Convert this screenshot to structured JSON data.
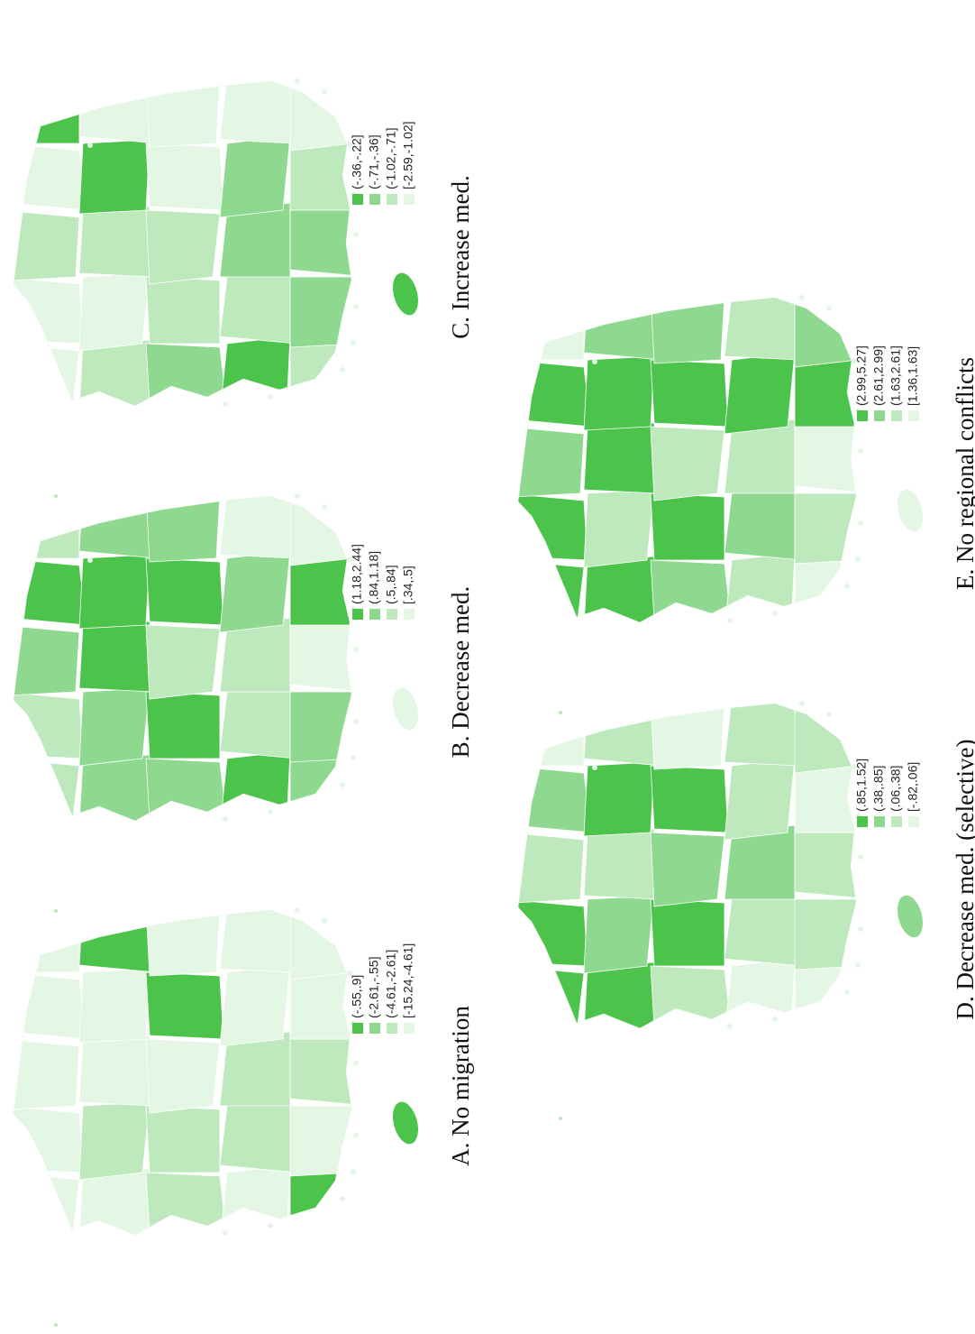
{
  "legend_colors": [
    "#4cc44c",
    "#8fd88f",
    "#bde9bd",
    "#e4f6e4"
  ],
  "panels": [
    {
      "caption": "A. No migration",
      "legend": [
        "(-.55,.9]",
        "(-2.61,-.55]",
        "(-4.61,-2.61]",
        "[-15.24,-4.61]"
      ]
    },
    {
      "caption": "B. Decrease med.",
      "legend": [
        "(1.18,2.44]",
        "(.84,1.18]",
        "(.5,.84]",
        "[.34,.5]"
      ]
    },
    {
      "caption": "C. Increase med.",
      "legend": [
        "(-.36,-.22]",
        "(-.71,-.36]",
        "(-1.02,-.71]",
        "[-2.59,-1.02]"
      ]
    },
    {
      "caption": "D. Decrease med. (selective)",
      "legend": [
        "(.85,1.52]",
        "(.38,.85]",
        "(.06,.38]",
        "[-.82,.06]"
      ]
    },
    {
      "caption": "E. No regional conflicts",
      "legend": [
        "(2.99,5.27]",
        "(2.61,2.99]",
        "(1.63,2.61]",
        "[1.36,1.63]"
      ]
    }
  ]
}
